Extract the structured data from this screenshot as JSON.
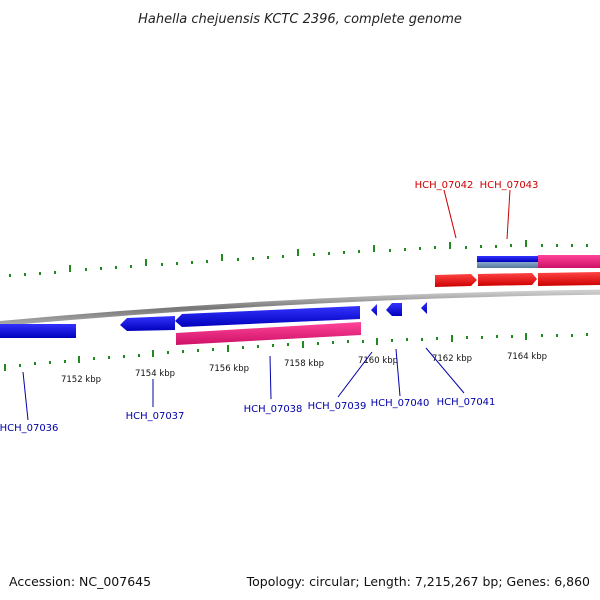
{
  "title": "Hahella chejuensis KCTC 2396, complete genome",
  "footer": {
    "accession": "Accession: NC_007645",
    "summary": "Topology: circular; Length: 7,215,267 bp; Genes: 6,860"
  },
  "colors": {
    "forward_gene": "#ee1111",
    "reverse_gene": "#1111dd",
    "forward_label": "#cc0000",
    "reverse_label": "#0000aa",
    "rna_pink": "#ee2277",
    "rna_steel": "#6688aa",
    "tick": "#228822",
    "backbone": "#888888"
  },
  "ticks": {
    "labels": [
      "7152 kbp",
      "7154 kbp",
      "7156 kbp",
      "7158 kbp",
      "7160 kbp",
      "7162 kbp",
      "7164 kbp"
    ]
  },
  "gene_labels": {
    "reverse": [
      "HCH_07036",
      "HCH_07037",
      "HCH_07038",
      "HCH_07039",
      "HCH_07040",
      "HCH_07041"
    ],
    "forward": [
      "HCH_07042",
      "HCH_07043"
    ]
  }
}
